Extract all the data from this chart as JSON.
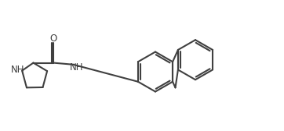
{
  "bg_color": "#ffffff",
  "line_color": "#404040",
  "line_width": 1.5,
  "font_size_NH": 8.5,
  "font_size_O": 8.5,
  "figsize": [
    3.62,
    1.68
  ],
  "dpi": 100,
  "xlim": [
    0.0,
    3.62
  ],
  "ylim": [
    0.0,
    1.68
  ]
}
